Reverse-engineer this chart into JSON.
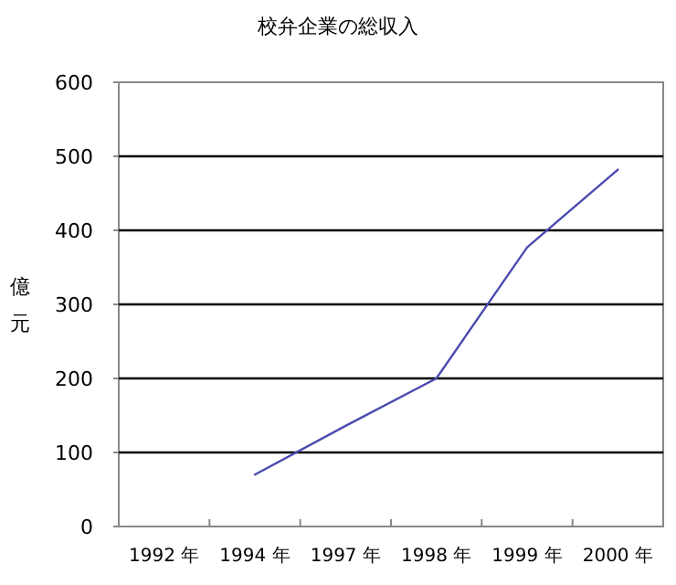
{
  "chart_data": {
    "type": "line",
    "title": "校弁企業の総収入",
    "ylabel": "億元",
    "categories": [
      "1992 年",
      "1994 年",
      "1997 年",
      "1998 年",
      "1999 年",
      "2000 年"
    ],
    "series": [
      {
        "color": "#4b4bb0",
        "values": [
          null,
          70,
          136,
          200,
          377,
          482
        ]
      }
    ],
    "ylim": [
      0,
      600
    ],
    "yticks": [
      0,
      100,
      200,
      300,
      400,
      500,
      600
    ],
    "grid": "y",
    "marker": "none",
    "line_style": "solid"
  }
}
